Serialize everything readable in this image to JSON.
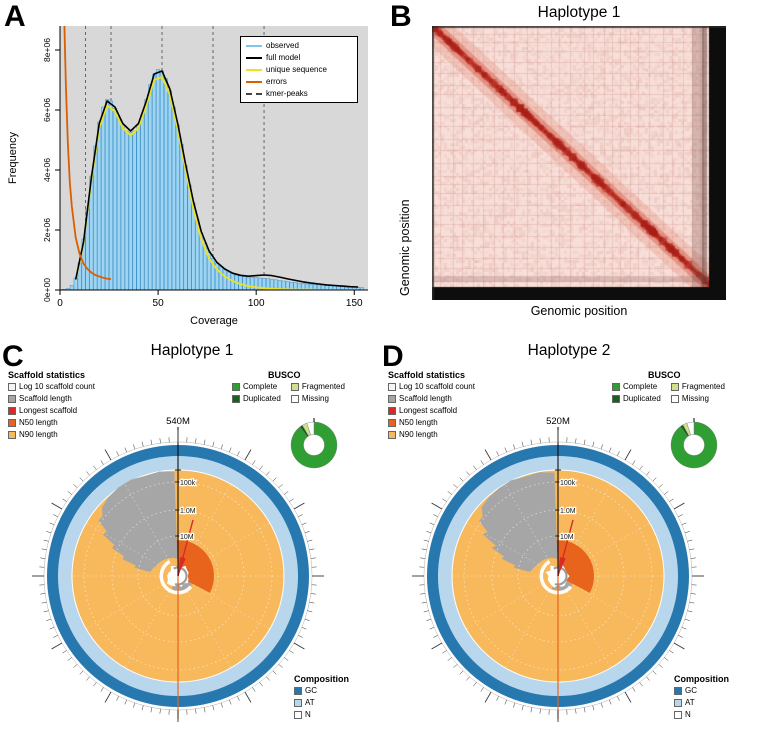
{
  "figure": {
    "bg": "#ffffff"
  },
  "panelA": {
    "letter": "A",
    "xlabel": "Coverage",
    "ylabel": "Frequency",
    "yticks": [
      "0e+00",
      "2e+06",
      "4e+06",
      "6e+06",
      "8e+06"
    ],
    "xticks": [
      0,
      50,
      100,
      150
    ],
    "legend": [
      {
        "label": "observed",
        "color": "#7fc5ec",
        "dashed": false
      },
      {
        "label": "full model",
        "color": "#000000",
        "dashed": false
      },
      {
        "label": "unique sequence",
        "color": "#f0e11e",
        "dashed": false
      },
      {
        "label": "errors",
        "color": "#d95f02",
        "dashed": false
      },
      {
        "label": "kmer-peaks",
        "color": "#444444",
        "dashed": true
      }
    ]
  },
  "panelB": {
    "letter": "B",
    "title": "Haplotype 1",
    "xlabel": "Genomic position",
    "ylabel": "Genomic position"
  },
  "panelC": {
    "letter": "C",
    "title": "Haplotype 1",
    "span_label": "540M",
    "scale_labels": [
      "100k",
      "1.0M",
      "10M"
    ],
    "scaffold_legend": {
      "title": "Scaffold statistics",
      "items": [
        {
          "label": "Log 10 scaffold count",
          "color": "#f5f5f5"
        },
        {
          "label": "Scaffold length",
          "color": "#a6a6a6"
        },
        {
          "label": "Longest scaffold",
          "color": "#d92b26"
        },
        {
          "label": "N50 length",
          "color": "#e8641c"
        },
        {
          "label": "N90 length",
          "color": "#f8b85c"
        }
      ]
    },
    "busco_legend": {
      "title": "BUSCO",
      "items": [
        {
          "label": "Complete",
          "color": "#2f9e33"
        },
        {
          "label": "Duplicated",
          "color": "#1b5e20"
        },
        {
          "label": "Fragmented",
          "color": "#cde08a"
        },
        {
          "label": "Missing",
          "color": "#ffffff"
        }
      ]
    },
    "composition_legend": {
      "title": "Composition",
      "items": [
        {
          "label": "GC",
          "color": "#2878b0"
        },
        {
          "label": "AT",
          "color": "#b9d7ec"
        },
        {
          "label": "N",
          "color": "#ffffff"
        }
      ]
    }
  },
  "panelD": {
    "letter": "D",
    "title": "Haplotype 2",
    "span_label": "520M",
    "scale_labels": [
      "100k",
      "1.0M",
      "10M"
    ],
    "scaffold_legend": {
      "title": "Scaffold statistics",
      "items": [
        {
          "label": "Log 10 scaffold count",
          "color": "#f5f5f5"
        },
        {
          "label": "Scaffold length",
          "color": "#a6a6a6"
        },
        {
          "label": "Longest scaffold",
          "color": "#d92b26"
        },
        {
          "label": "N50 length",
          "color": "#e8641c"
        },
        {
          "label": "N90 length",
          "color": "#f8b85c"
        }
      ]
    },
    "busco_legend": {
      "title": "BUSCO",
      "items": [
        {
          "label": "Complete",
          "color": "#2f9e33"
        },
        {
          "label": "Duplicated",
          "color": "#1b5e20"
        },
        {
          "label": "Fragmented",
          "color": "#cde08a"
        },
        {
          "label": "Missing",
          "color": "#ffffff"
        }
      ]
    },
    "composition_legend": {
      "title": "Composition",
      "items": [
        {
          "label": "GC",
          "color": "#2878b0"
        },
        {
          "label": "AT",
          "color": "#b9d7ec"
        },
        {
          "label": "N",
          "color": "#ffffff"
        }
      ]
    }
  },
  "chart_data": [
    {
      "type": "bar",
      "panel": "A",
      "xlabel": "Coverage",
      "ylabel": "Frequency",
      "xlim": [
        0,
        157
      ],
      "ylim": [
        0,
        8800000
      ],
      "observed": {
        "x_start": 2,
        "x_step": 2,
        "y_millions": [
          0.02,
          0.05,
          0.15,
          0.4,
          0.9,
          1.7,
          2.7,
          3.8,
          4.8,
          5.6,
          6.1,
          6.35,
          6.3,
          6.05,
          5.75,
          5.5,
          5.3,
          5.25,
          5.3,
          5.5,
          5.85,
          6.35,
          6.85,
          7.2,
          7.35,
          7.3,
          7.05,
          6.65,
          6.1,
          5.5,
          4.85,
          4.15,
          3.5,
          2.9,
          2.35,
          1.9,
          1.55,
          1.25,
          1.05,
          0.9,
          0.78,
          0.68,
          0.6,
          0.55,
          0.5,
          0.47,
          0.45,
          0.43,
          0.42,
          0.41,
          0.4,
          0.39,
          0.38,
          0.36,
          0.34,
          0.32,
          0.3,
          0.28,
          0.26,
          0.25,
          0.23,
          0.22,
          0.2,
          0.19,
          0.18,
          0.17,
          0.16,
          0.15,
          0.14,
          0.13,
          0.12,
          0.11,
          0.1,
          0.1,
          0.09,
          0.09,
          0.08
        ]
      },
      "full_model": {
        "x_start": 8,
        "x_step": 4,
        "y_millions": [
          0.35,
          1.6,
          3.75,
          5.55,
          6.3,
          6.1,
          5.55,
          5.3,
          5.55,
          6.3,
          7.2,
          7.3,
          6.7,
          5.55,
          4.2,
          2.95,
          1.95,
          1.3,
          0.92,
          0.7,
          0.56,
          0.49,
          0.46,
          0.48,
          0.5,
          0.48,
          0.43,
          0.37,
          0.32,
          0.27,
          0.23,
          0.2,
          0.17,
          0.15,
          0.13,
          0.11,
          0.1
        ]
      },
      "unique_sequence": {
        "x_start": 8,
        "x_step": 4,
        "y_millions": [
          0.33,
          1.55,
          3.65,
          5.4,
          6.15,
          5.95,
          5.4,
          5.15,
          5.4,
          6.15,
          7.0,
          7.1,
          6.5,
          5.35,
          4.0,
          2.7,
          1.7,
          1.05,
          0.68,
          0.45,
          0.3,
          0.2,
          0.13,
          0.09,
          0.06,
          0.04,
          0.03,
          0.02,
          0.01,
          0.01,
          0.01,
          0,
          0,
          0,
          0,
          0,
          0
        ]
      },
      "errors": {
        "x": [
          2,
          3,
          4,
          5,
          6,
          8,
          10,
          12,
          14,
          16,
          18,
          20,
          22,
          24,
          26
        ],
        "y_millions": [
          9.5,
          6.8,
          4.9,
          3.6,
          2.8,
          1.75,
          1.2,
          0.88,
          0.7,
          0.58,
          0.5,
          0.45,
          0.41,
          0.38,
          0.36
        ]
      },
      "kmer_peaks": [
        13,
        26,
        52,
        78,
        104
      ]
    },
    {
      "type": "heatmap",
      "panel": "B",
      "title": "Haplotype 1",
      "xlabel": "Genomic position",
      "ylabel": "Genomic position",
      "pattern": "Hi-C contact map: strong red diagonal on light pink background, faint grid blocks, thick black right and bottom margins"
    },
    {
      "type": "pie",
      "panel": "C",
      "title": "Haplotype 1",
      "assembly_span": "540M",
      "radial_ticks": [
        "100k",
        "1.0M",
        "10M"
      ],
      "busco_fractions": {
        "complete": 0.895,
        "duplicated": 0.02,
        "fragmented": 0.035,
        "missing": 0.05
      }
    },
    {
      "type": "pie",
      "panel": "D",
      "title": "Haplotype 2",
      "assembly_span": "520M",
      "radial_ticks": [
        "100k",
        "1.0M",
        "10M"
      ],
      "busco_fractions": {
        "complete": 0.9,
        "duplicated": 0.02,
        "fragmented": 0.03,
        "missing": 0.05
      }
    }
  ]
}
